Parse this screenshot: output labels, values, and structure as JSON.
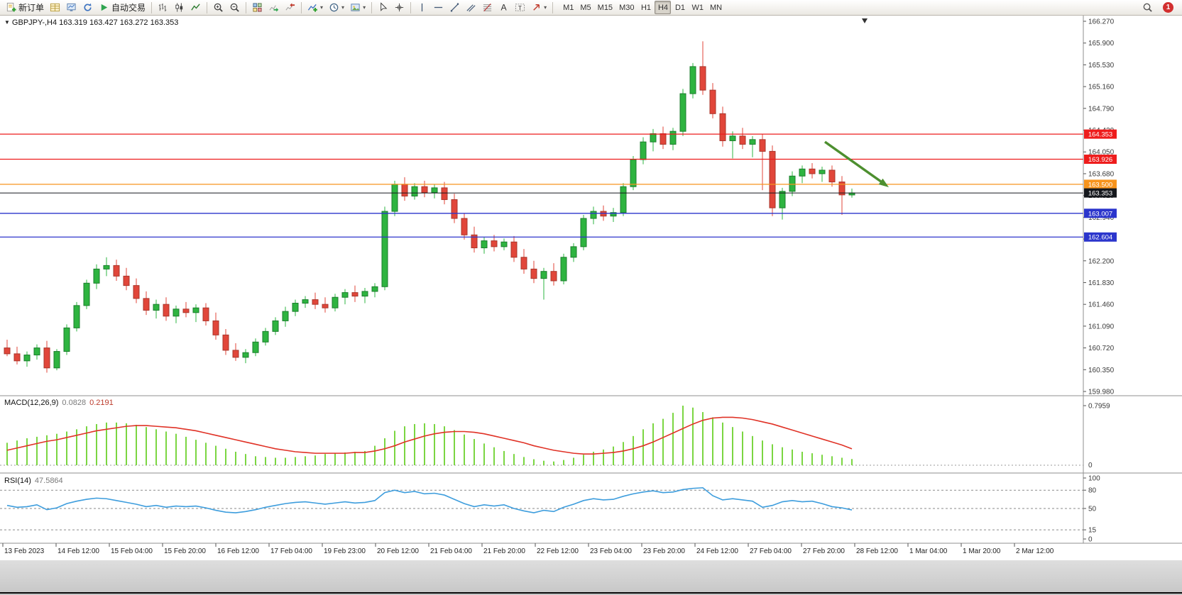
{
  "toolbar": {
    "new_order_label": "新订单",
    "autotrading_label": "自动交易",
    "timeframes": [
      "M1",
      "M5",
      "M15",
      "M30",
      "H1",
      "H4",
      "D1",
      "W1",
      "MN"
    ],
    "active_timeframe": "H4",
    "notification_count": "1"
  },
  "chart": {
    "info_bar": "GBPJPY-,H4 163.319 163.427 163.272 163.353",
    "levels": [
      {
        "label": "164.353",
        "price": 164.353,
        "color": "#ee1c1c",
        "style": "solid"
      },
      {
        "label": "163.926",
        "price": 163.926,
        "color": "#ee1c1c",
        "style": "solid"
      },
      {
        "label": "163.500",
        "price": 163.5,
        "color": "#f7941d",
        "style": "solid"
      },
      {
        "label": "163.353",
        "price": 163.353,
        "color": "#15181d",
        "style": "current"
      },
      {
        "label": "163.007",
        "price": 163.007,
        "color": "#2b35cc",
        "style": "solid"
      },
      {
        "label": "162.604",
        "price": 162.604,
        "color": "#2b35cc",
        "style": "solid"
      }
    ],
    "colors": {
      "up": "#2eb440",
      "up_stroke": "#1b7d2c",
      "down": "#e1463a",
      "down_stroke": "#a8362b",
      "macd_hist": "#7bd642",
      "macd_signal": "#e03226",
      "rsi_line": "#3d9ddd",
      "axis_text": "#3a3a3a",
      "level_tag_text": "#ffffff",
      "arrow": "#4d8f2f"
    }
  },
  "macd_panel": {
    "title": "MACD(12,26,9)",
    "value_main": "0.0828",
    "value_signal": "0.2191",
    "axis_max_label": "0.7959",
    "axis_zero_label": "0"
  },
  "rsi_panel": {
    "title": "RSI(14)",
    "value": "47.5864",
    "axis_labels": [
      "100",
      "80",
      "50",
      "15",
      "0"
    ],
    "level_values": [
      80,
      50,
      15
    ]
  },
  "chart_data": [
    {
      "type": "candlestick",
      "title": "GBPJPY- H4",
      "ylim": [
        159.98,
        166.27
      ],
      "y_ticks": [
        "166.270",
        "165.900",
        "165.530",
        "165.160",
        "164.790",
        "164.420",
        "164.050",
        "163.680",
        "163.310",
        "162.940",
        "162.570",
        "162.200",
        "161.830",
        "161.460",
        "161.090",
        "160.720",
        "160.350",
        "159.980"
      ],
      "x_ticks": [
        "13 Feb 2023",
        "14 Feb 12:00",
        "15 Feb 04:00",
        "15 Feb 20:00",
        "16 Feb 12:00",
        "17 Feb 04:00",
        "19 Feb 23:00",
        "20 Feb 12:00",
        "21 Feb 04:00",
        "21 Feb 20:00",
        "22 Feb 12:00",
        "23 Feb 04:00",
        "23 Feb 20:00",
        "24 Feb 12:00",
        "27 Feb 04:00",
        "27 Feb 20:00",
        "28 Feb 12:00",
        "1 Mar 04:00",
        "1 Mar 20:00",
        "2 Mar 12:00"
      ],
      "ohlc": [
        [
          160.72,
          160.86,
          160.58,
          160.62
        ],
        [
          160.62,
          160.74,
          160.44,
          160.5
        ],
        [
          160.5,
          160.66,
          160.4,
          160.6
        ],
        [
          160.6,
          160.78,
          160.52,
          160.72
        ],
        [
          160.72,
          160.84,
          160.3,
          160.38
        ],
        [
          160.38,
          160.7,
          160.34,
          160.66
        ],
        [
          160.66,
          161.12,
          160.6,
          161.06
        ],
        [
          161.06,
          161.5,
          161.0,
          161.44
        ],
        [
          161.44,
          161.88,
          161.38,
          161.82
        ],
        [
          161.82,
          162.14,
          161.72,
          162.06
        ],
        [
          162.06,
          162.26,
          161.94,
          162.12
        ],
        [
          162.12,
          162.22,
          161.86,
          161.94
        ],
        [
          161.94,
          162.08,
          161.7,
          161.78
        ],
        [
          161.78,
          161.9,
          161.48,
          161.56
        ],
        [
          161.56,
          161.68,
          161.28,
          161.36
        ],
        [
          161.36,
          161.54,
          161.22,
          161.46
        ],
        [
          161.46,
          161.58,
          161.18,
          161.26
        ],
        [
          161.26,
          161.44,
          161.14,
          161.38
        ],
        [
          161.38,
          161.5,
          161.24,
          161.32
        ],
        [
          161.32,
          161.46,
          161.16,
          161.4
        ],
        [
          161.4,
          161.48,
          161.1,
          161.18
        ],
        [
          161.18,
          161.32,
          160.86,
          160.94
        ],
        [
          160.94,
          161.04,
          160.6,
          160.68
        ],
        [
          160.68,
          160.8,
          160.5,
          160.56
        ],
        [
          160.56,
          160.7,
          160.46,
          160.64
        ],
        [
          160.64,
          160.88,
          160.58,
          160.82
        ],
        [
          160.82,
          161.06,
          160.76,
          161.0
        ],
        [
          161.0,
          161.24,
          160.94,
          161.18
        ],
        [
          161.18,
          161.42,
          161.08,
          161.34
        ],
        [
          161.34,
          161.54,
          161.26,
          161.48
        ],
        [
          161.48,
          161.6,
          161.4,
          161.54
        ],
        [
          161.54,
          161.66,
          161.38,
          161.46
        ],
        [
          161.46,
          161.58,
          161.32,
          161.4
        ],
        [
          161.4,
          161.64,
          161.34,
          161.58
        ],
        [
          161.58,
          161.72,
          161.46,
          161.66
        ],
        [
          161.66,
          161.78,
          161.5,
          161.6
        ],
        [
          161.6,
          161.74,
          161.48,
          161.68
        ],
        [
          161.68,
          161.82,
          161.58,
          161.76
        ],
        [
          161.76,
          163.12,
          161.7,
          163.04
        ],
        [
          163.04,
          163.56,
          162.96,
          163.5
        ],
        [
          163.5,
          163.62,
          163.22,
          163.3
        ],
        [
          163.3,
          163.52,
          163.24,
          163.46
        ],
        [
          163.46,
          163.56,
          163.28,
          163.36
        ],
        [
          163.36,
          163.5,
          163.26,
          163.44
        ],
        [
          163.44,
          163.54,
          163.16,
          163.24
        ],
        [
          163.24,
          163.34,
          162.84,
          162.92
        ],
        [
          162.92,
          163.0,
          162.56,
          162.64
        ],
        [
          162.64,
          162.78,
          162.34,
          162.42
        ],
        [
          162.42,
          162.6,
          162.32,
          162.54
        ],
        [
          162.54,
          162.64,
          162.36,
          162.44
        ],
        [
          162.44,
          162.58,
          162.38,
          162.52
        ],
        [
          162.52,
          162.62,
          162.18,
          162.26
        ],
        [
          162.26,
          162.4,
          161.98,
          162.06
        ],
        [
          162.06,
          162.2,
          161.82,
          161.9
        ],
        [
          161.9,
          162.08,
          161.54,
          162.02
        ],
        [
          162.02,
          162.16,
          161.78,
          161.86
        ],
        [
          161.86,
          162.32,
          161.8,
          162.26
        ],
        [
          162.26,
          162.5,
          162.18,
          162.44
        ],
        [
          162.44,
          162.98,
          162.38,
          162.92
        ],
        [
          162.92,
          163.12,
          162.82,
          163.04
        ],
        [
          163.04,
          163.14,
          162.88,
          162.96
        ],
        [
          162.96,
          163.1,
          162.86,
          163.02
        ],
        [
          163.02,
          163.52,
          162.96,
          163.46
        ],
        [
          163.46,
          163.98,
          163.4,
          163.92
        ],
        [
          163.92,
          164.3,
          163.84,
          164.22
        ],
        [
          164.22,
          164.44,
          164.06,
          164.36
        ],
        [
          164.36,
          164.48,
          164.1,
          164.18
        ],
        [
          164.18,
          164.46,
          164.08,
          164.4
        ],
        [
          164.4,
          165.12,
          164.32,
          165.04
        ],
        [
          165.04,
          165.56,
          164.96,
          165.5
        ],
        [
          165.5,
          165.93,
          165.02,
          165.1
        ],
        [
          165.1,
          165.22,
          164.62,
          164.7
        ],
        [
          164.7,
          164.82,
          164.14,
          164.24
        ],
        [
          164.24,
          164.4,
          163.94,
          164.32
        ],
        [
          164.32,
          164.46,
          164.1,
          164.18
        ],
        [
          164.18,
          164.32,
          163.96,
          164.26
        ],
        [
          164.26,
          164.36,
          163.4,
          164.06
        ],
        [
          164.06,
          164.16,
          162.96,
          163.1
        ],
        [
          163.1,
          163.44,
          162.9,
          163.38
        ],
        [
          163.38,
          163.72,
          163.3,
          163.64
        ],
        [
          163.64,
          163.82,
          163.52,
          163.76
        ],
        [
          163.76,
          163.86,
          163.6,
          163.68
        ],
        [
          163.68,
          163.8,
          163.54,
          163.74
        ],
        [
          163.74,
          163.82,
          163.46,
          163.54
        ],
        [
          163.54,
          163.64,
          162.98,
          163.32
        ],
        [
          163.319,
          163.427,
          163.272,
          163.353
        ]
      ]
    },
    {
      "type": "bar",
      "title": "MACD(12,26,9)",
      "ylim": [
        0,
        0.7959
      ],
      "values": [
        0.3,
        0.33,
        0.36,
        0.38,
        0.4,
        0.42,
        0.45,
        0.48,
        0.52,
        0.55,
        0.57,
        0.57,
        0.56,
        0.54,
        0.51,
        0.48,
        0.45,
        0.42,
        0.38,
        0.34,
        0.3,
        0.26,
        0.22,
        0.18,
        0.15,
        0.12,
        0.11,
        0.1,
        0.1,
        0.11,
        0.12,
        0.13,
        0.15,
        0.16,
        0.17,
        0.18,
        0.19,
        0.26,
        0.36,
        0.46,
        0.52,
        0.55,
        0.56,
        0.55,
        0.52,
        0.47,
        0.41,
        0.35,
        0.29,
        0.24,
        0.19,
        0.15,
        0.11,
        0.08,
        0.06,
        0.05,
        0.07,
        0.1,
        0.14,
        0.18,
        0.21,
        0.25,
        0.31,
        0.39,
        0.48,
        0.56,
        0.62,
        0.7,
        0.7959,
        0.77,
        0.71,
        0.64,
        0.57,
        0.51,
        0.45,
        0.39,
        0.33,
        0.28,
        0.24,
        0.21,
        0.18,
        0.16,
        0.14,
        0.12,
        0.1,
        0.0828
      ],
      "series": [
        {
          "name": "signal",
          "values": [
            0.2,
            0.23,
            0.26,
            0.29,
            0.32,
            0.34,
            0.37,
            0.4,
            0.43,
            0.46,
            0.48,
            0.5,
            0.52,
            0.53,
            0.53,
            0.52,
            0.51,
            0.5,
            0.48,
            0.46,
            0.43,
            0.4,
            0.37,
            0.34,
            0.31,
            0.28,
            0.25,
            0.22,
            0.2,
            0.18,
            0.17,
            0.16,
            0.16,
            0.16,
            0.16,
            0.17,
            0.17,
            0.19,
            0.22,
            0.26,
            0.31,
            0.35,
            0.39,
            0.42,
            0.44,
            0.45,
            0.45,
            0.44,
            0.42,
            0.39,
            0.36,
            0.33,
            0.3,
            0.26,
            0.23,
            0.2,
            0.18,
            0.16,
            0.15,
            0.15,
            0.16,
            0.17,
            0.19,
            0.22,
            0.26,
            0.31,
            0.37,
            0.43,
            0.49,
            0.55,
            0.6,
            0.63,
            0.64,
            0.64,
            0.63,
            0.61,
            0.58,
            0.55,
            0.51,
            0.47,
            0.43,
            0.39,
            0.35,
            0.31,
            0.27,
            0.2191
          ]
        }
      ]
    },
    {
      "type": "line",
      "title": "RSI(14)",
      "ylim": [
        0,
        100
      ],
      "values": [
        55,
        52,
        53,
        56,
        48,
        51,
        58,
        62,
        65,
        67,
        66,
        63,
        60,
        57,
        53,
        55,
        52,
        54,
        53,
        54,
        51,
        47,
        44,
        43,
        45,
        48,
        52,
        55,
        58,
        60,
        61,
        59,
        57,
        59,
        61,
        59,
        60,
        63,
        76,
        80,
        76,
        78,
        74,
        75,
        72,
        65,
        58,
        53,
        56,
        54,
        56,
        50,
        46,
        43,
        47,
        45,
        52,
        57,
        63,
        66,
        64,
        65,
        70,
        74,
        77,
        79,
        76,
        77,
        81,
        83,
        84,
        71,
        64,
        66,
        64,
        62,
        52,
        55,
        61,
        63,
        61,
        62,
        58,
        53,
        51,
        47.5864
      ]
    }
  ],
  "annotation": {
    "type": "arrow",
    "direction": "down-right"
  }
}
